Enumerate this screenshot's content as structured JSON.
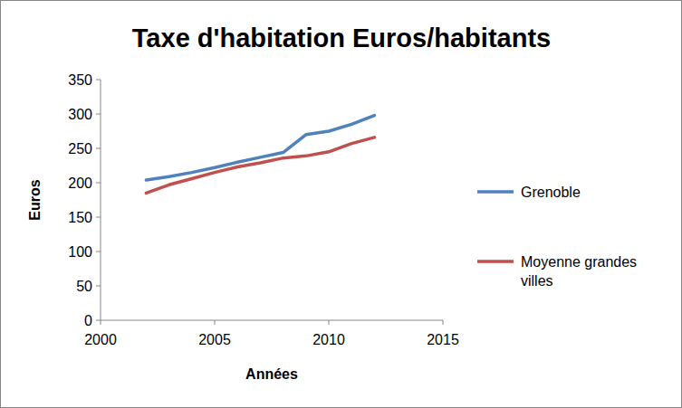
{
  "chart_data": {
    "type": "line",
    "title": "Taxe d'habitation Euros/habitants",
    "x_label": "Années",
    "y_label": "Euros",
    "x": [
      2002,
      2003,
      2004,
      2005,
      2006,
      2007,
      2008,
      2009,
      2010,
      2011,
      2012
    ],
    "series": [
      {
        "name": "Grenoble",
        "color": "#4f81bd",
        "values": [
          204,
          209,
          215,
          222,
          230,
          237,
          244,
          270,
          275,
          285,
          298
        ]
      },
      {
        "name": "Moyenne grandes villes",
        "color": "#c0504d",
        "values": [
          185,
          197,
          206,
          215,
          223,
          229,
          236,
          239,
          245,
          257,
          266
        ]
      }
    ],
    "xlim": [
      2000,
      2015
    ],
    "xticks": [
      2000,
      2005,
      2010,
      2015
    ],
    "ylim": [
      0,
      350
    ],
    "yticks": [
      0,
      50,
      100,
      150,
      200,
      250,
      300,
      350
    ],
    "grid": false,
    "legend": "right"
  }
}
